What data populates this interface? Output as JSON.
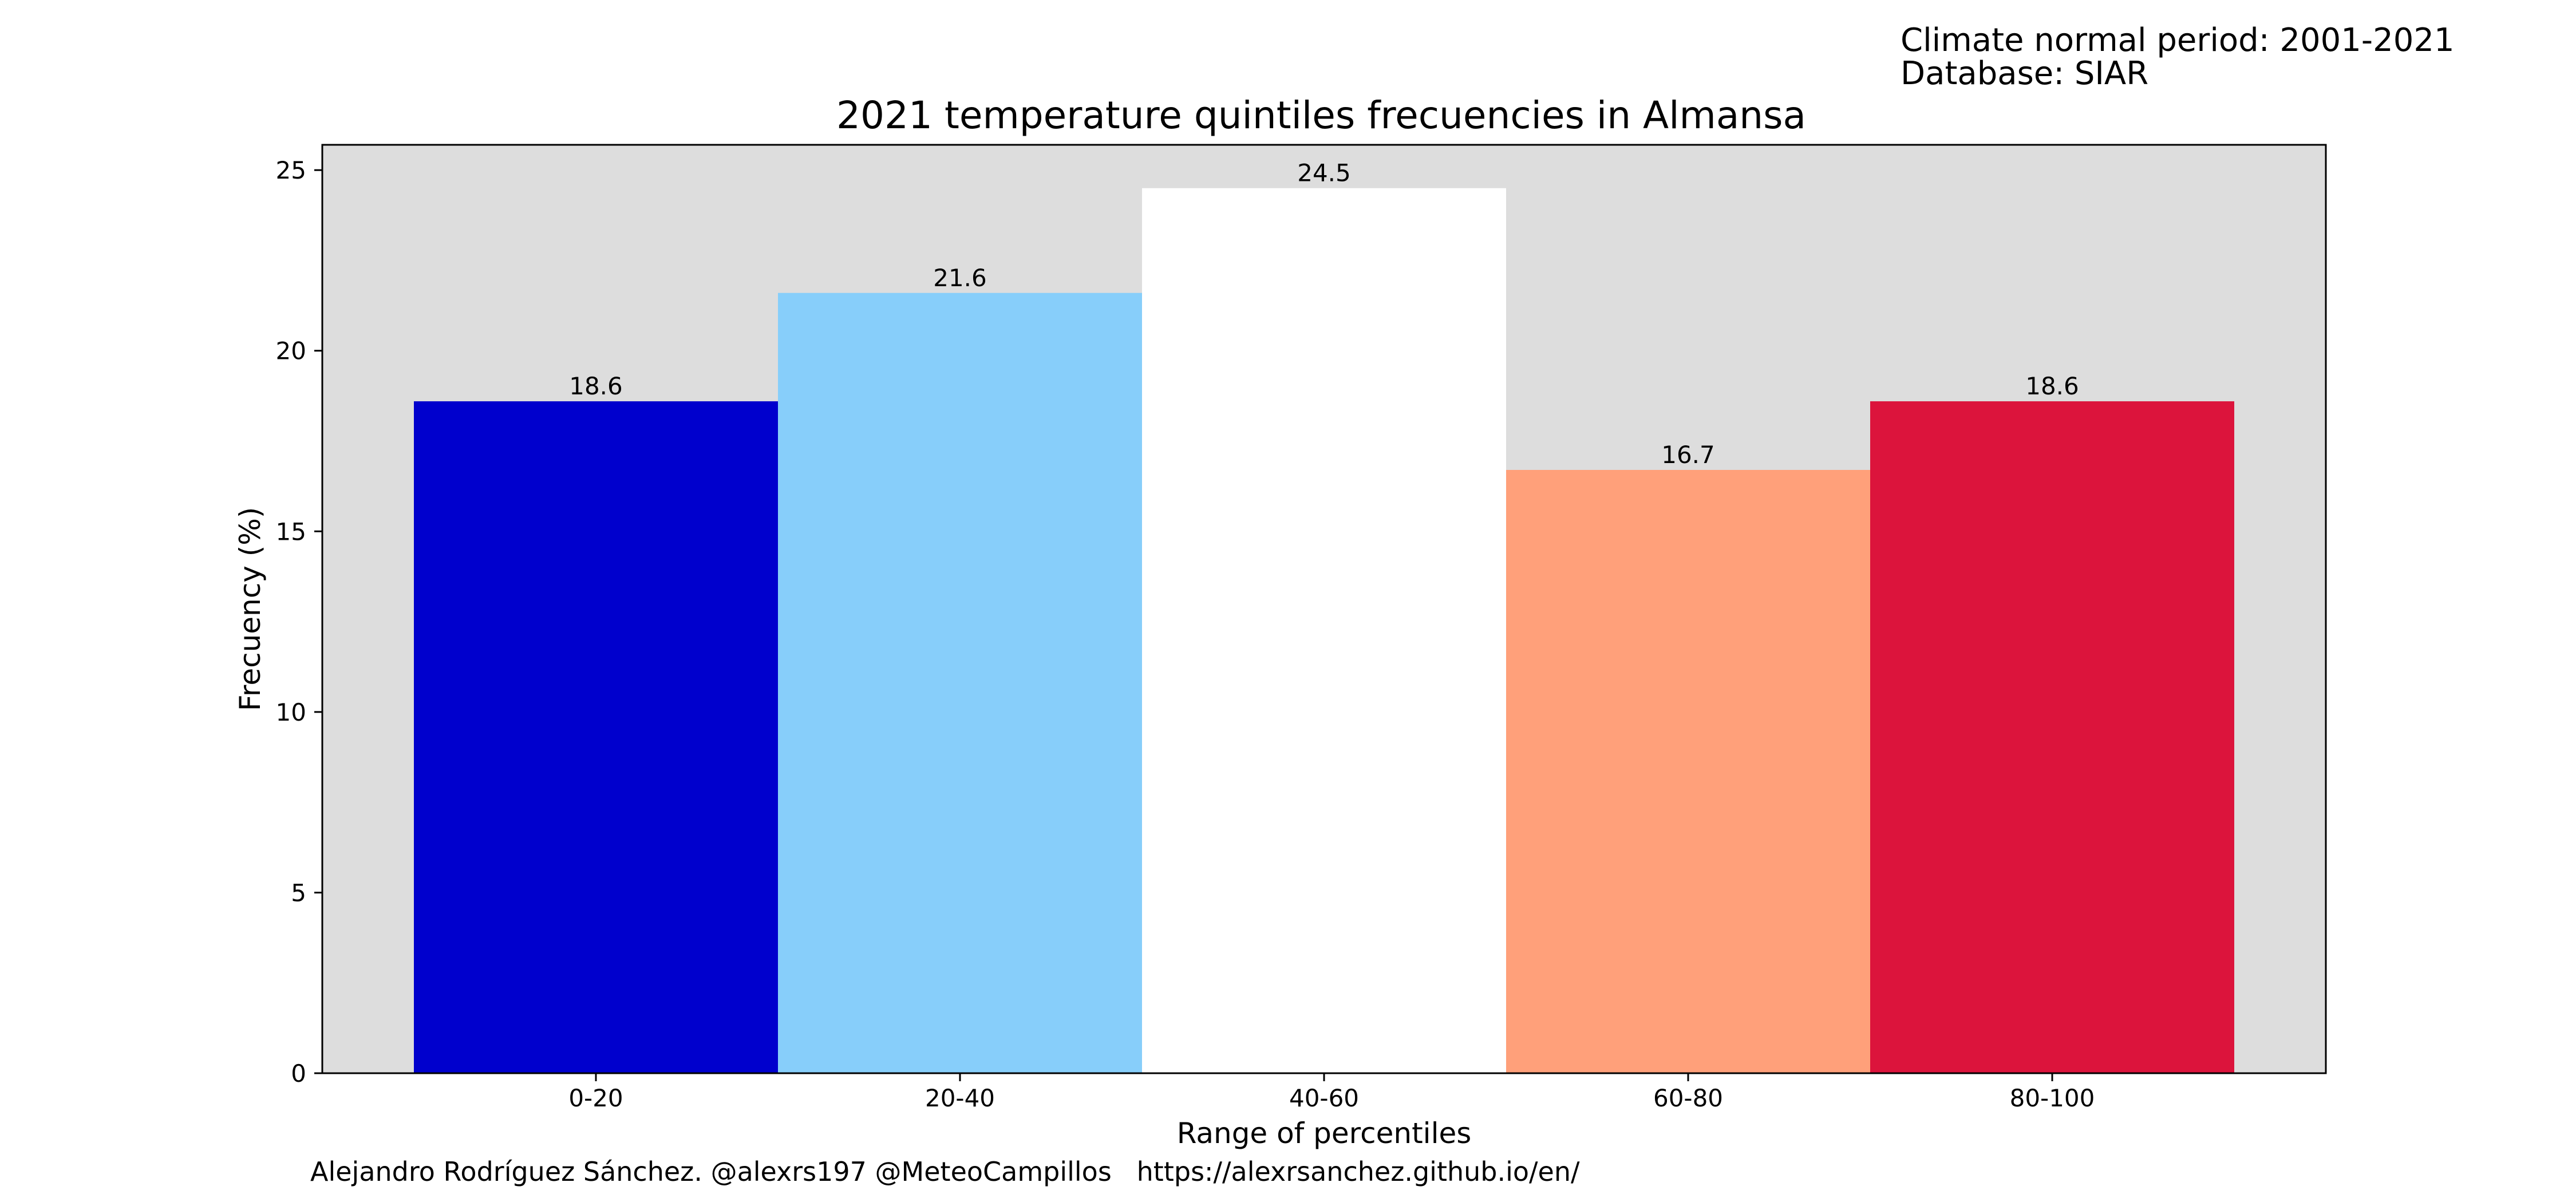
{
  "header": {
    "climate_normal": "Climate normal period: 2001-2021",
    "database": "Database: SIAR"
  },
  "footer": {
    "credit": "Alejandro Rodríguez Sánchez. @alexrs197 @MeteoCampillos   https://alexrsanchez.github.io/en/"
  },
  "chart_data": {
    "type": "bar",
    "title": "2021 temperature quintiles frecuencies in Almansa",
    "xlabel": "Range of percentiles",
    "ylabel": "Frecuency (%)",
    "categories": [
      "0-20",
      "20-40",
      "40-60",
      "60-80",
      "80-100"
    ],
    "values": [
      18.6,
      21.6,
      24.5,
      16.7,
      18.6
    ],
    "data_labels": [
      "18.6",
      "21.6",
      "24.5",
      "16.7",
      "18.6"
    ],
    "colors": [
      "#0000cd",
      "#87cefa",
      "#ffffff",
      "#ffa07a",
      "#dc143c"
    ],
    "ylim": [
      0,
      25.7
    ],
    "yticks": [
      0,
      5,
      10,
      15,
      20,
      25
    ],
    "plot_background": "#dddddd",
    "grid": false,
    "legend": "none"
  }
}
